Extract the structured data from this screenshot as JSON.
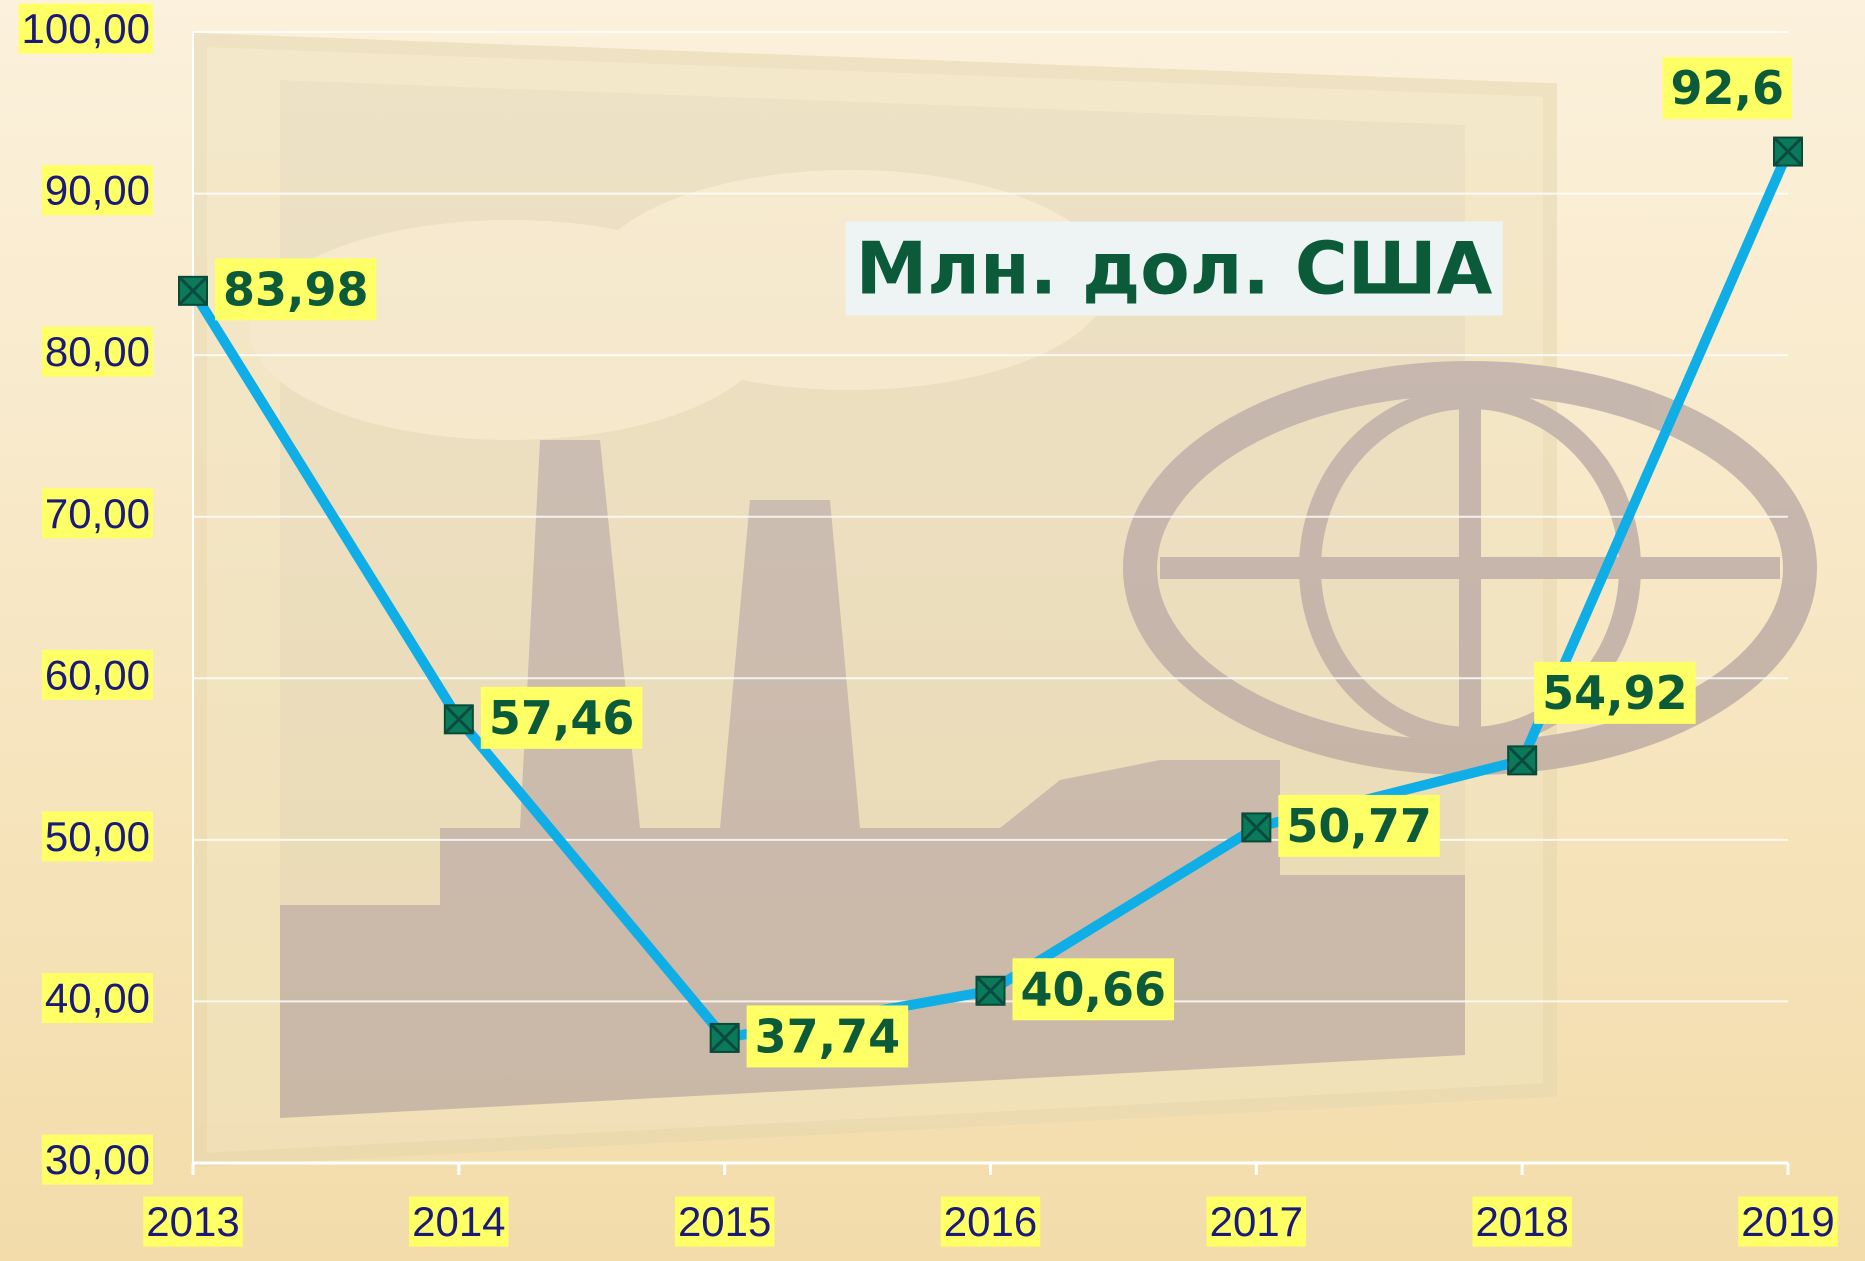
{
  "chart_data": {
    "type": "line",
    "annotation": "Млн. дол. США",
    "categories": [
      "2013",
      "2014",
      "2015",
      "2016",
      "2017",
      "2018",
      "2019"
    ],
    "values": [
      83.98,
      57.46,
      37.74,
      40.66,
      50.77,
      54.92,
      92.6
    ],
    "value_labels": [
      "83,98",
      "57,46",
      "37,74",
      "40,66",
      "50,77",
      "54,92",
      "92,6"
    ],
    "color": "#10aee6",
    "marker_color": "#0a7a5a",
    "label_background": "#ffff66",
    "ylim": [
      30,
      100
    ],
    "yticks": [
      {
        "value": 30,
        "label": "30,00"
      },
      {
        "value": 40,
        "label": "40,00"
      },
      {
        "value": 50,
        "label": "50,00"
      },
      {
        "value": 60,
        "label": "60,00"
      },
      {
        "value": 70,
        "label": "70,00"
      },
      {
        "value": 80,
        "label": "80,00"
      },
      {
        "value": 90,
        "label": "90,00"
      },
      {
        "value": 100,
        "label": "100,00"
      }
    ],
    "grid": true
  }
}
